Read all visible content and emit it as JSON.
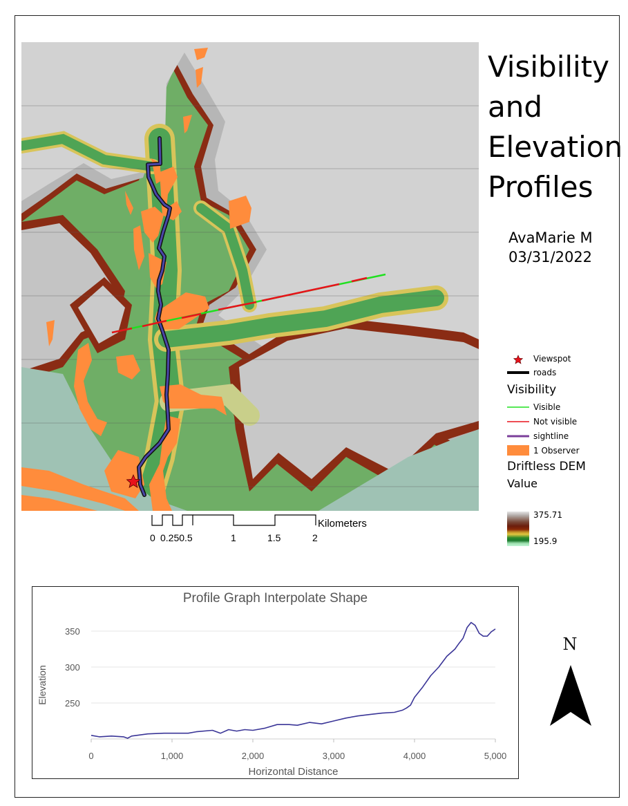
{
  "title": {
    "line1": "Visibility",
    "line2": "and",
    "line3": "Elevation",
    "line4": "Profiles"
  },
  "author": {
    "name": "AvaMarie M",
    "date": "03/31/2022"
  },
  "legend": {
    "viewspot": {
      "label": "Viewspot",
      "icon": "star-icon",
      "color": "#e8121b"
    },
    "roads": {
      "label": "roads",
      "color": "#000000"
    },
    "visibility_heading": "Visibility",
    "visible": {
      "label": "Visible",
      "color": "#1fe01f"
    },
    "not_visible": {
      "label": "Not visible",
      "color": "#e8121b"
    },
    "sightline": {
      "label": "sightline",
      "color": "#7b3f9a"
    },
    "observer": {
      "label": "1 Observer",
      "color": "#ff8c3c"
    },
    "dem_heading": "Driftless DEM",
    "value_heading": "Value",
    "dem_max": "375.71",
    "dem_min": "195.9"
  },
  "scalebar": {
    "ticks": [
      "0",
      "0.25",
      "0.5",
      "1",
      "1.5",
      "2"
    ],
    "tick_label_text": "0 0.250.5",
    "tick_1": "1",
    "tick_15": "1.5",
    "tick_2": "2",
    "units": "Kilometers"
  },
  "north_arrow": {
    "label": "N"
  },
  "chart_data": {
    "type": "line",
    "title": "Profile Graph Interpolate Shape",
    "xlabel": "Horizontal Distance",
    "ylabel": "Elevation",
    "xlim": [
      0,
      5000
    ],
    "ylim": [
      200,
      370
    ],
    "x_ticks": [
      "0",
      "1,000",
      "2,000",
      "3,000",
      "4,000",
      "5,000"
    ],
    "y_ticks": [
      "250",
      "300",
      "350"
    ],
    "grid": "horizontal",
    "line_color": "#3a3597",
    "x": [
      0,
      100,
      250,
      400,
      450,
      500,
      700,
      900,
      1000,
      1200,
      1300,
      1500,
      1600,
      1700,
      1800,
      1900,
      2000,
      2150,
      2300,
      2450,
      2550,
      2700,
      2850,
      3000,
      3150,
      3300,
      3450,
      3600,
      3750,
      3850,
      3900,
      3950,
      4000,
      4100,
      4200,
      4300,
      4400,
      4500,
      4550,
      4600,
      4650,
      4700,
      4750,
      4800,
      4850,
      4900,
      4950,
      5000
    ],
    "values": [
      205,
      203,
      204,
      203,
      201,
      204,
      207,
      208,
      208,
      208,
      210,
      212,
      208,
      213,
      211,
      213,
      212,
      215,
      220,
      220,
      219,
      223,
      221,
      225,
      229,
      232,
      234,
      236,
      237,
      240,
      243,
      247,
      258,
      272,
      288,
      300,
      315,
      325,
      333,
      340,
      355,
      362,
      358,
      347,
      343,
      343,
      349,
      353
    ]
  }
}
